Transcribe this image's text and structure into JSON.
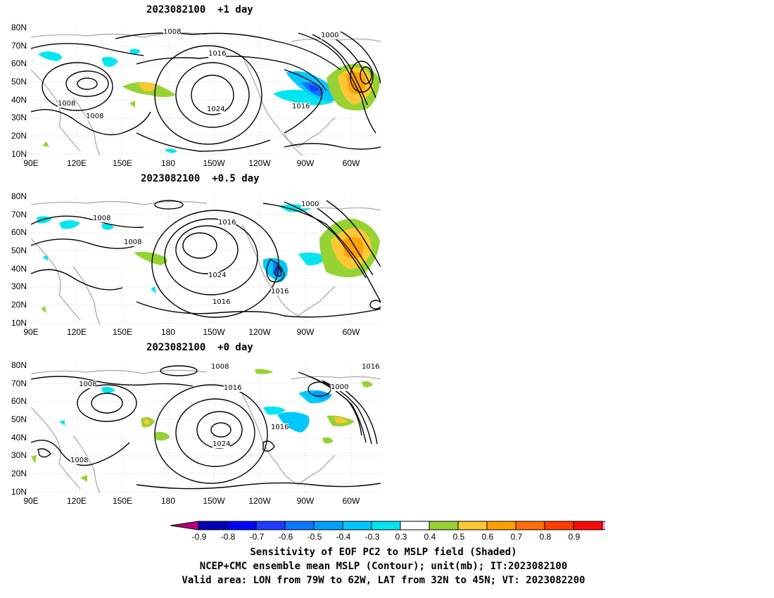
{
  "panels": [
    {
      "title": "2023082100  +1 day",
      "lat_labels": [
        "80N",
        "70N",
        "60N",
        "50N",
        "40N",
        "30N",
        "20N",
        "10N"
      ],
      "lon_labels": [
        "90E",
        "120E",
        "150E",
        "180",
        "150W",
        "120W",
        "90W",
        "60W"
      ],
      "contour_labels": [
        "1008",
        "1000",
        "1016",
        "1008",
        "1008",
        "1024",
        "1016"
      ]
    },
    {
      "title": "2023082100  +0.5 day",
      "lat_labels": [
        "80N",
        "70N",
        "60N",
        "50N",
        "40N",
        "30N",
        "20N",
        "10N"
      ],
      "lon_labels": [
        "90E",
        "120E",
        "150E",
        "180",
        "150W",
        "120W",
        "90W",
        "60W"
      ],
      "contour_labels": [
        "1000",
        "1008",
        "1016",
        "1008",
        "1024",
        "1016",
        "1016"
      ]
    },
    {
      "title": "2023082100  +0 day",
      "lat_labels": [
        "80N",
        "70N",
        "60N",
        "50N",
        "40N",
        "30N",
        "20N",
        "10N"
      ],
      "lon_labels": [
        "90E",
        "120E",
        "150E",
        "180",
        "150W",
        "120W",
        "90W",
        "60W"
      ],
      "contour_labels": [
        "1008",
        "1008",
        "1016",
        "1016",
        "1000",
        "1016",
        "1024",
        "1008"
      ]
    }
  ],
  "colorbar": {
    "labels": [
      "-0.9",
      "-0.8",
      "-0.7",
      "-0.6",
      "-0.5",
      "-0.4",
      "-0.3",
      "0.3",
      "0.4",
      "0.5",
      "0.6",
      "0.7",
      "0.8",
      "0.9"
    ],
    "colors": [
      "#0000b4",
      "#0000ff",
      "#1e3cff",
      "#0a78ff",
      "#00a0ff",
      "#00c8ff",
      "#00e6f0",
      "#ffffff",
      "#96d232",
      "#ffc832",
      "#ffa000",
      "#ff6e0a",
      "#ff3c00",
      "#fa0a0a"
    ],
    "under_color": "#b4007a",
    "over_color": "#ff9ed2"
  },
  "caption": {
    "line1": "Sensitivity of EOF PC2 to MSLP field (Shaded)",
    "line2": "NCEP+CMC ensemble mean MSLP (Contour); unit(mb); IT:2023082100",
    "line3": "Valid area: LON from 79W to 62W, LAT from 32N to 45N; VT: 2023082200"
  }
}
